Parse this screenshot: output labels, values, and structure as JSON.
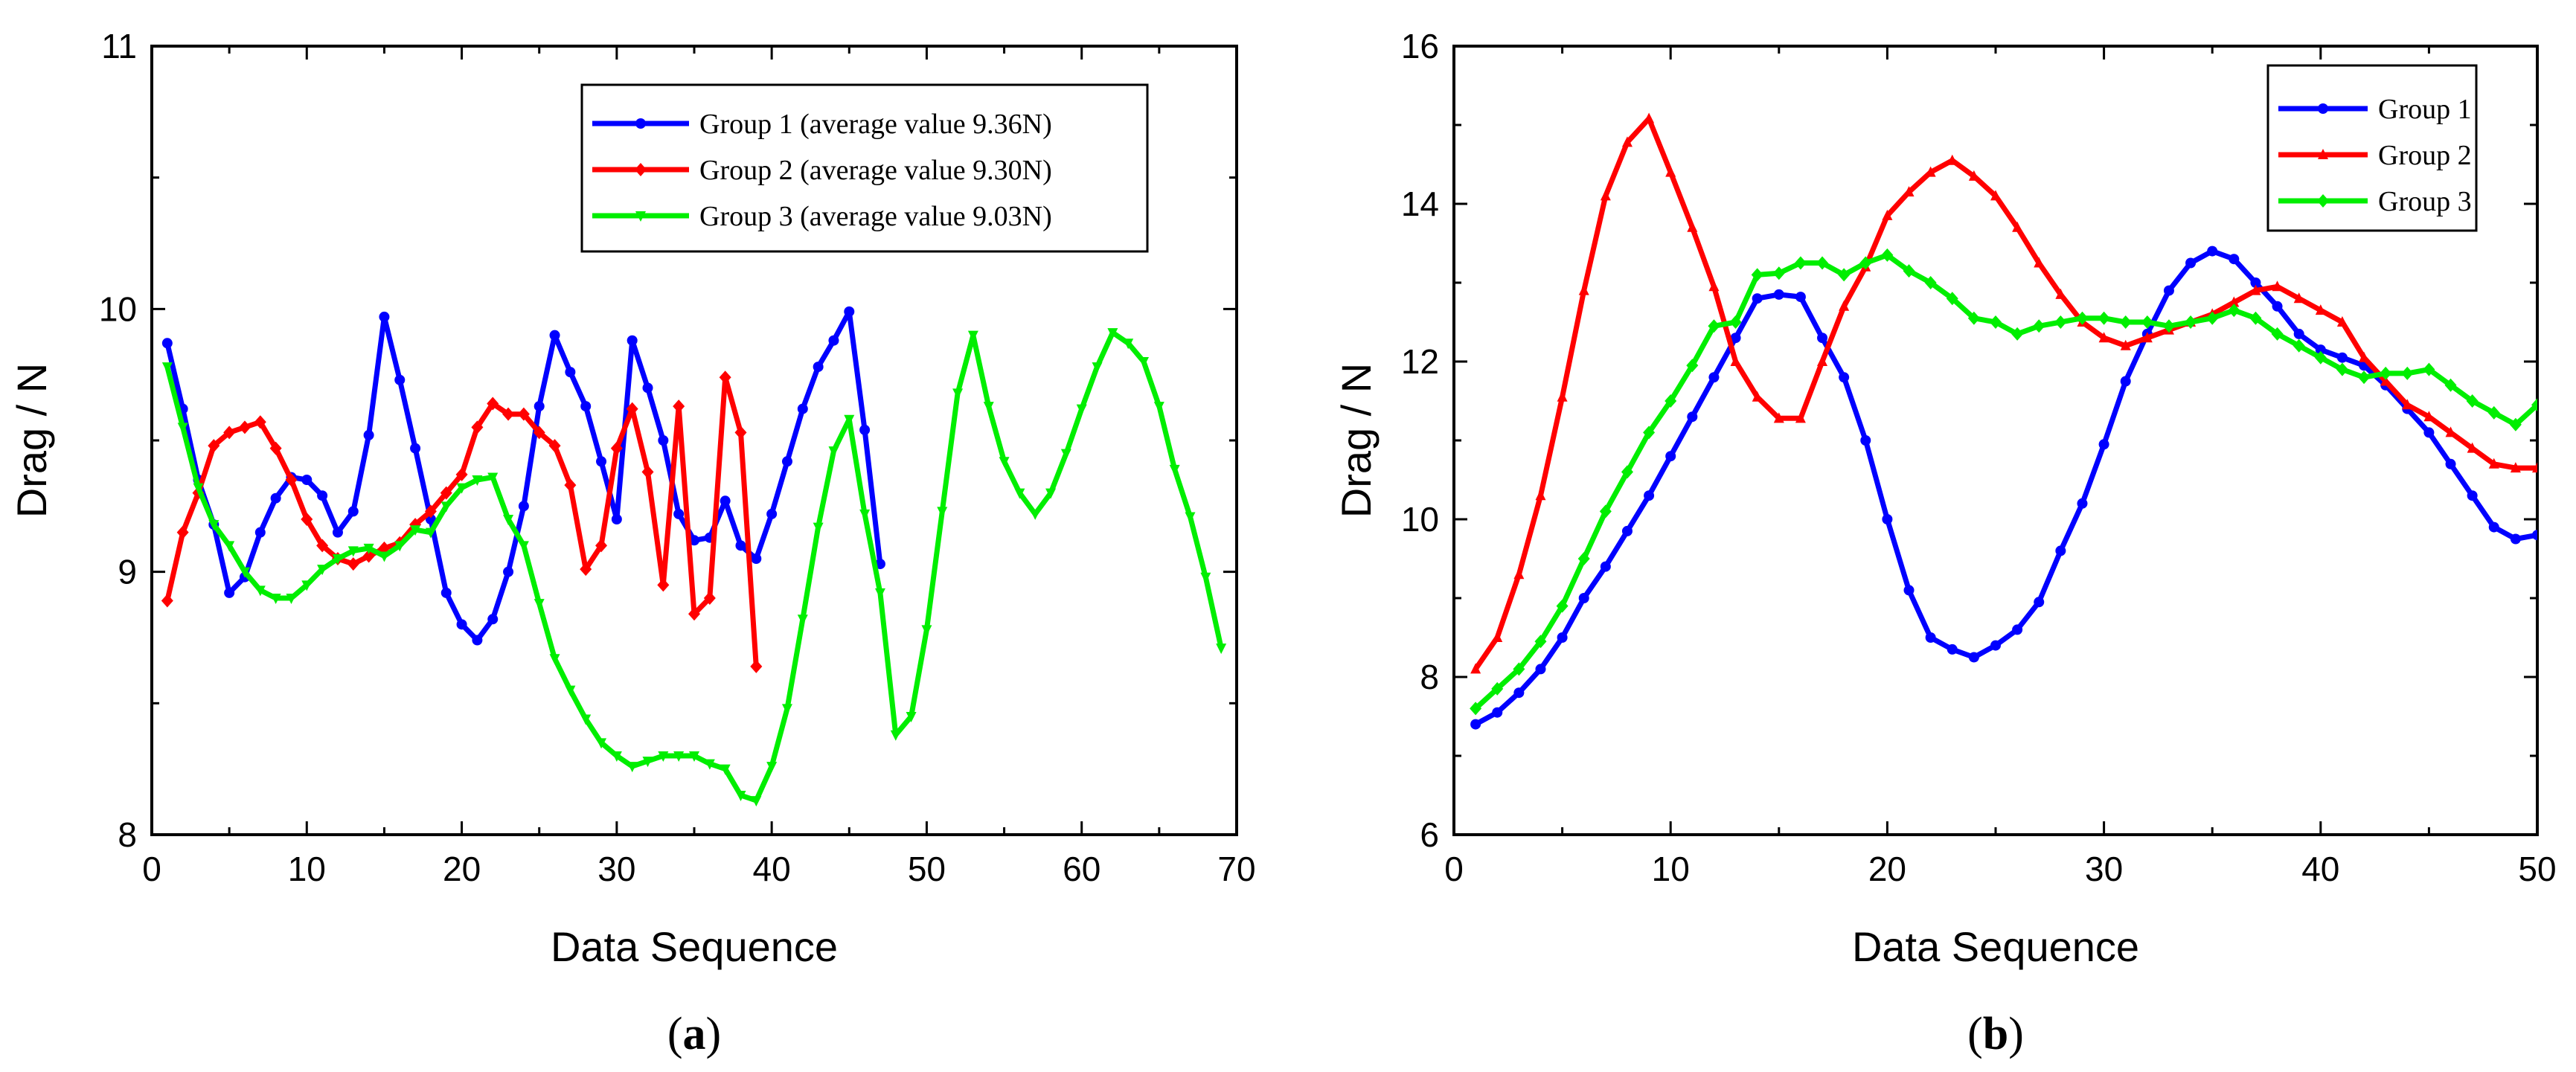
{
  "chart_data": [
    {
      "type": "line",
      "panel_label": "(a)",
      "xlabel": "Data Sequence",
      "ylabel": "Drag / N",
      "xlim": [
        0,
        70
      ],
      "ylim": [
        8,
        11
      ],
      "xticks": [
        0,
        10,
        20,
        30,
        40,
        50,
        60,
        70
      ],
      "yticks": [
        8,
        9,
        10,
        11
      ],
      "grid": false,
      "legend_position": "top-right",
      "series": [
        {
          "name": "Group 1 (average value 9.36N)",
          "color": "#0000ff",
          "marker": "circle",
          "x": [
            1,
            2,
            3,
            4,
            5,
            6,
            7,
            8,
            9,
            10,
            11,
            12,
            13,
            14,
            15,
            16,
            17,
            18,
            19,
            20,
            21,
            22,
            23,
            24,
            25,
            26,
            27,
            28,
            29,
            30,
            31,
            32,
            33,
            34,
            35,
            36,
            37,
            38,
            39,
            40,
            41,
            42,
            43,
            44,
            45,
            46,
            47
          ],
          "y": [
            9.87,
            9.62,
            9.35,
            9.18,
            8.92,
            8.98,
            9.15,
            9.28,
            9.36,
            9.35,
            9.29,
            9.15,
            9.23,
            9.52,
            9.97,
            9.73,
            9.47,
            9.2,
            8.92,
            8.8,
            8.74,
            8.82,
            9.0,
            9.25,
            9.63,
            9.9,
            9.76,
            9.63,
            9.42,
            9.2,
            9.88,
            9.7,
            9.5,
            9.22,
            9.12,
            9.13,
            9.27,
            9.1,
            9.05,
            9.22,
            9.42,
            9.62,
            9.78,
            9.88,
            9.99,
            9.54,
            9.03
          ]
        },
        {
          "name": "Group 2 (average value 9.30N)",
          "color": "#ff0000",
          "marker": "diamond",
          "x": [
            1,
            2,
            3,
            4,
            5,
            6,
            7,
            8,
            9,
            10,
            11,
            12,
            13,
            14,
            15,
            16,
            17,
            18,
            19,
            20,
            21,
            22,
            23,
            24,
            25,
            26,
            27,
            28,
            29,
            30,
            31,
            32,
            33,
            34,
            35,
            36,
            37,
            38,
            39
          ],
          "y": [
            8.89,
            9.15,
            9.3,
            9.48,
            9.53,
            9.55,
            9.57,
            9.47,
            9.35,
            9.2,
            9.1,
            9.05,
            9.03,
            9.06,
            9.09,
            9.11,
            9.18,
            9.23,
            9.3,
            9.37,
            9.55,
            9.64,
            9.6,
            9.6,
            9.53,
            9.48,
            9.33,
            9.01,
            9.1,
            9.47,
            9.62,
            9.38,
            8.95,
            9.63,
            8.84,
            8.9,
            9.74,
            9.53,
            8.64
          ]
        },
        {
          "name": "Group 3 (average value 9.03N)",
          "color": "#00ee00",
          "marker": "triangle-down",
          "x": [
            1,
            2,
            3,
            4,
            5,
            6,
            7,
            8,
            9,
            10,
            11,
            12,
            13,
            14,
            15,
            16,
            17,
            18,
            19,
            20,
            21,
            22,
            23,
            24,
            25,
            26,
            27,
            28,
            29,
            30,
            31,
            32,
            33,
            34,
            35,
            36,
            37,
            38,
            39,
            40,
            41,
            42,
            43,
            44,
            45,
            46,
            47,
            48,
            49,
            50,
            51,
            52,
            53,
            54,
            55,
            56,
            57,
            58,
            59,
            60,
            61,
            62,
            63,
            64,
            65,
            66,
            67,
            68,
            69
          ],
          "y": [
            9.78,
            9.55,
            9.32,
            9.18,
            9.1,
            9.0,
            8.93,
            8.9,
            8.9,
            8.95,
            9.01,
            9.05,
            9.08,
            9.09,
            9.06,
            9.1,
            9.16,
            9.15,
            9.25,
            9.32,
            9.35,
            9.36,
            9.2,
            9.1,
            8.88,
            8.67,
            8.55,
            8.44,
            8.35,
            8.3,
            8.26,
            8.28,
            8.3,
            8.3,
            8.3,
            8.27,
            8.25,
            8.15,
            8.13,
            8.26,
            8.48,
            8.82,
            9.17,
            9.46,
            9.58,
            9.22,
            8.92,
            8.38,
            8.45,
            8.78,
            9.23,
            9.68,
            9.9,
            9.63,
            9.42,
            9.3,
            9.22,
            9.3,
            9.45,
            9.62,
            9.78,
            9.91,
            9.87,
            9.8,
            9.63,
            9.39,
            9.21,
            8.98,
            8.71
          ]
        }
      ]
    },
    {
      "type": "line",
      "panel_label": "(b)",
      "xlabel": "Data Sequence",
      "ylabel": "Drag / N",
      "xlim": [
        0,
        50
      ],
      "ylim": [
        6,
        16
      ],
      "xticks": [
        0,
        10,
        20,
        30,
        40,
        50
      ],
      "yticks": [
        6,
        8,
        10,
        12,
        14,
        16
      ],
      "grid": false,
      "legend_position": "top-right",
      "series": [
        {
          "name": "Group 1",
          "color": "#0000ff",
          "marker": "circle",
          "x": [
            1,
            2,
            3,
            4,
            5,
            6,
            7,
            8,
            9,
            10,
            11,
            12,
            13,
            14,
            15,
            16,
            17,
            18,
            19,
            20,
            21,
            22,
            23,
            24,
            25,
            26,
            27,
            28,
            29,
            30,
            31,
            32,
            33,
            34,
            35,
            36,
            37,
            38,
            39,
            40,
            41,
            42,
            43,
            44,
            45,
            46,
            47,
            48,
            49,
            50
          ],
          "y": [
            7.4,
            7.55,
            7.8,
            8.1,
            8.5,
            9.0,
            9.4,
            9.85,
            10.3,
            10.8,
            11.3,
            11.8,
            12.3,
            12.8,
            12.85,
            12.82,
            12.3,
            11.8,
            11.0,
            10.0,
            9.1,
            8.5,
            8.35,
            8.25,
            8.4,
            8.6,
            8.95,
            9.6,
            10.2,
            10.95,
            11.75,
            12.35,
            12.9,
            13.25,
            13.4,
            13.3,
            13.0,
            12.7,
            12.35,
            12.15,
            12.05,
            11.95,
            11.7,
            11.4,
            11.1,
            10.7,
            10.3,
            9.9,
            9.75,
            9.8
          ]
        },
        {
          "name": "Group 2",
          "color": "#ff0000",
          "marker": "triangle-up",
          "x": [
            1,
            2,
            3,
            4,
            5,
            6,
            7,
            8,
            9,
            10,
            11,
            12,
            13,
            14,
            15,
            16,
            17,
            18,
            19,
            20,
            21,
            22,
            23,
            24,
            25,
            26,
            27,
            28,
            29,
            30,
            31,
            32,
            33,
            34,
            35,
            36,
            37,
            38,
            39,
            40,
            41,
            42,
            43,
            44,
            45,
            46,
            47,
            48,
            49,
            50
          ],
          "y": [
            8.1,
            8.5,
            9.3,
            10.3,
            11.55,
            12.9,
            14.1,
            14.78,
            15.08,
            14.4,
            13.7,
            12.95,
            12.0,
            11.55,
            11.28,
            11.28,
            12.0,
            12.7,
            13.2,
            13.85,
            14.15,
            14.4,
            14.55,
            14.35,
            14.1,
            13.7,
            13.25,
            12.85,
            12.5,
            12.3,
            12.2,
            12.3,
            12.4,
            12.5,
            12.6,
            12.75,
            12.9,
            12.95,
            12.8,
            12.65,
            12.5,
            12.05,
            11.75,
            11.45,
            11.3,
            11.1,
            10.9,
            10.7,
            10.65,
            10.65
          ]
        },
        {
          "name": "Group 3",
          "color": "#00ee00",
          "marker": "diamond",
          "x": [
            1,
            2,
            3,
            4,
            5,
            6,
            7,
            8,
            9,
            10,
            11,
            12,
            13,
            14,
            15,
            16,
            17,
            18,
            19,
            20,
            21,
            22,
            23,
            24,
            25,
            26,
            27,
            28,
            29,
            30,
            31,
            32,
            33,
            34,
            35,
            36,
            37,
            38,
            39,
            40,
            41,
            42,
            43,
            44,
            45,
            46,
            47,
            48,
            49,
            50
          ],
          "y": [
            7.6,
            7.85,
            8.1,
            8.45,
            8.9,
            9.5,
            10.1,
            10.6,
            11.1,
            11.5,
            11.95,
            12.45,
            12.5,
            13.1,
            13.12,
            13.25,
            13.25,
            13.1,
            13.25,
            13.35,
            13.15,
            13.0,
            12.8,
            12.55,
            12.5,
            12.35,
            12.45,
            12.5,
            12.55,
            12.55,
            12.5,
            12.5,
            12.45,
            12.5,
            12.55,
            12.65,
            12.55,
            12.35,
            12.2,
            12.05,
            11.9,
            11.8,
            11.85,
            11.85,
            11.9,
            11.7,
            11.5,
            11.35,
            11.2,
            11.45
          ]
        }
      ]
    }
  ]
}
